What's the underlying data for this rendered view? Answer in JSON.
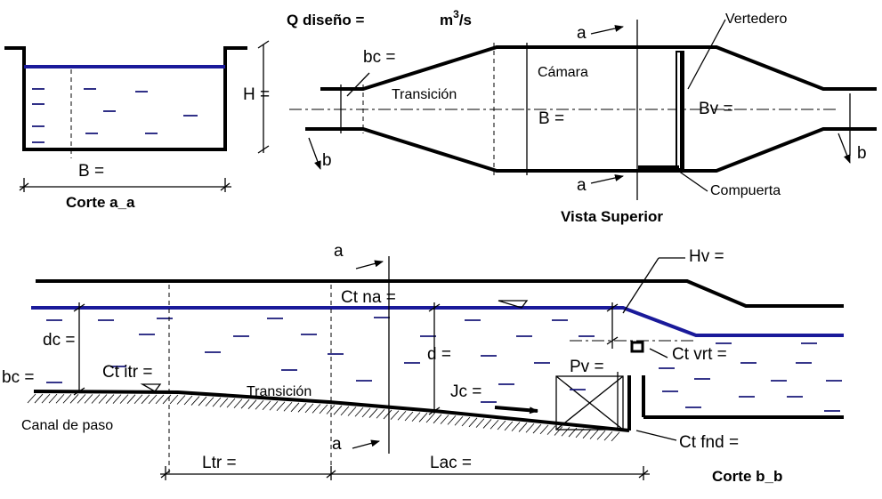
{
  "header": {
    "q_label": "Q diseño =",
    "q_unit_base": "m",
    "q_unit_exp": "3",
    "q_unit_tail": "/s"
  },
  "corte_aa": {
    "title": "Corte a_a",
    "h_label": "H =",
    "b_label": "B ="
  },
  "vista_superior": {
    "title": "Vista Superior",
    "bc_label": "bc =",
    "transicion_label": "Transición",
    "camara_label": "Cámara",
    "b_label": "B =",
    "bv_label": "Bv =",
    "vertedero_label": "Vertedero",
    "compuerta_label": "Compuerta",
    "section_mark_a": "a",
    "section_mark_b": "b"
  },
  "corte_bb": {
    "title": "Corte b_b",
    "section_mark_a": "a",
    "hv_label": "Hv =",
    "ct_na_label": "Ct na =",
    "dc_label": "dc =",
    "bc_label": "bc =",
    "ct_itr_label": "Ct itr =",
    "transicion_label": "Transición",
    "canal_label": "Canal de paso",
    "d_label": "d =",
    "pv_label": "Pv =",
    "ct_vrt_label": "Ct vrt =",
    "jc_label": "Jc =",
    "ct_fnd_label": "Ct fnd =",
    "ltr_label": "Ltr =",
    "lac_label": "Lac ="
  },
  "colors": {
    "water_line": "#1a1a9a",
    "outline": "#000000"
  }
}
